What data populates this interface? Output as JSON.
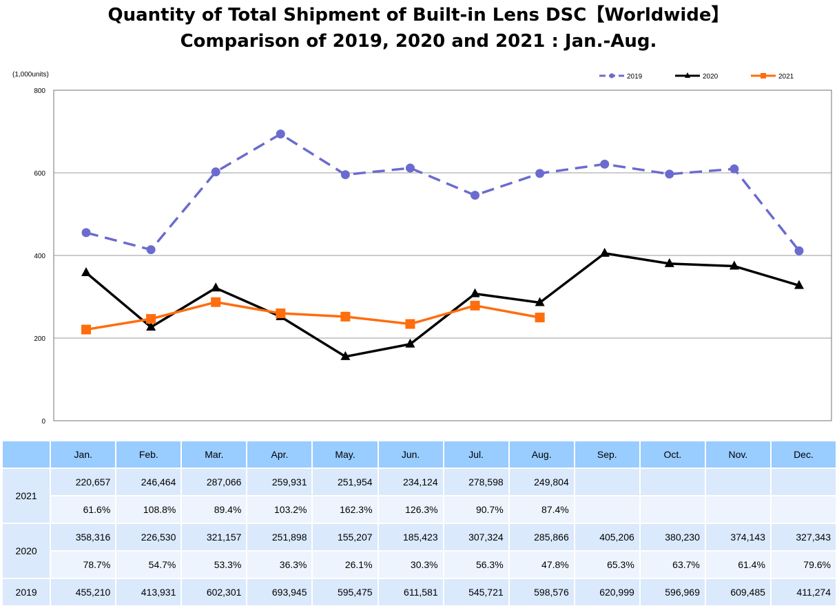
{
  "title": {
    "line1": "Quantity of Total Shipment of Built-in Lens DSC【Worldwide】",
    "line2": "Comparison of 2019, 2020 and 2021 : Jan.-Aug."
  },
  "chart_data": {
    "type": "line",
    "title": "Quantity of Total Shipment of Built-in Lens DSC【Worldwide】 Comparison of 2019, 2020 and 2021 : Jan.-Aug.",
    "ylabel": "(1,000units)",
    "xlabel": "",
    "ylim": [
      0,
      800
    ],
    "yticks": [
      "0",
      "200",
      "400",
      "600",
      "800"
    ],
    "grid": true,
    "legend_position": "top-right",
    "categories": [
      "Jan.",
      "Feb.",
      "Mar.",
      "Apr.",
      "May.",
      "Jun.",
      "Jul.",
      "Aug.",
      "Sep.",
      "Oct.",
      "Nov.",
      "Dec."
    ],
    "series": [
      {
        "name": "2019",
        "color": "#6b6bcf",
        "style": "dashed",
        "marker": "circle",
        "values": [
          455.21,
          413.931,
          602.301,
          693.945,
          595.475,
          611.581,
          545.721,
          598.576,
          620.999,
          596.969,
          609.485,
          411.274
        ]
      },
      {
        "name": "2020",
        "color": "#000000",
        "style": "solid",
        "marker": "triangle",
        "values": [
          358.316,
          226.53,
          321.157,
          251.898,
          155.207,
          185.423,
          307.324,
          285.866,
          405.206,
          380.23,
          374.143,
          327.343
        ]
      },
      {
        "name": "2021",
        "color": "#ff6d0d",
        "style": "solid",
        "marker": "square",
        "values": [
          220.657,
          246.464,
          287.066,
          259.931,
          251.954,
          234.124,
          278.598,
          249.804,
          null,
          null,
          null,
          null
        ]
      }
    ]
  },
  "table": {
    "headers": [
      "",
      "Jan.",
      "Feb.",
      "Mar.",
      "Apr.",
      "May.",
      "Jun.",
      "Jul.",
      "Aug.",
      "Sep.",
      "Oct.",
      "Nov.",
      "Dec."
    ],
    "rows": {
      "y2021": {
        "label": "2021",
        "values": [
          "220,657",
          "246,464",
          "287,066",
          "259,931",
          "251,954",
          "234,124",
          "278,598",
          "249,804",
          "",
          "",
          "",
          ""
        ],
        "percents": [
          "61.6%",
          "108.8%",
          "89.4%",
          "103.2%",
          "162.3%",
          "126.3%",
          "90.7%",
          "87.4%",
          "",
          "",
          "",
          ""
        ]
      },
      "y2020": {
        "label": "2020",
        "values": [
          "358,316",
          "226,530",
          "321,157",
          "251,898",
          "155,207",
          "185,423",
          "307,324",
          "285,866",
          "405,206",
          "380,230",
          "374,143",
          "327,343"
        ],
        "percents": [
          "78.7%",
          "54.7%",
          "53.3%",
          "36.3%",
          "26.1%",
          "30.3%",
          "56.3%",
          "47.8%",
          "65.3%",
          "63.7%",
          "61.4%",
          "79.6%"
        ]
      },
      "y2019": {
        "label": "2019",
        "values": [
          "455,210",
          "413,931",
          "602,301",
          "693,945",
          "595,475",
          "611,581",
          "545,721",
          "598,576",
          "620,999",
          "596,969",
          "609,485",
          "411,274"
        ]
      }
    }
  }
}
